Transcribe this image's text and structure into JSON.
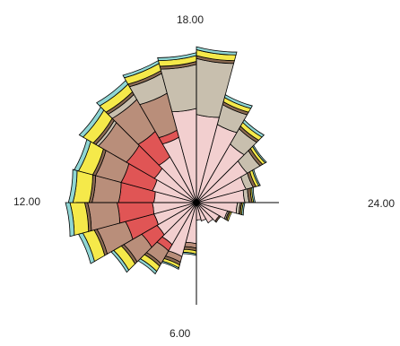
{
  "chart_data": {
    "type": "polar-stacked-bar",
    "title": "",
    "hour_axis": {
      "labels": [
        {
          "text": "18.00",
          "hour": 18
        },
        {
          "text": "12.00",
          "hour": 12
        },
        {
          "text": "24.00",
          "hour": 24
        },
        {
          "text": "6.00",
          "hour": 6
        }
      ]
    },
    "radius_max": 100,
    "series": [
      {
        "color": "#f2cfcf",
        "values": [
          {
            "hour": 6.5,
            "value": 28
          },
          {
            "hour": 7.5,
            "value": 38
          },
          {
            "hour": 8.5,
            "value": 33
          },
          {
            "hour": 9.5,
            "value": 31
          },
          {
            "hour": 10.5,
            "value": 30
          },
          {
            "hour": 11.5,
            "value": 30
          },
          {
            "hour": 12.5,
            "value": 29
          },
          {
            "hour": 13.5,
            "value": 31
          },
          {
            "hour": 14.5,
            "value": 33
          },
          {
            "hour": 15.5,
            "value": 36
          },
          {
            "hour": 16.5,
            "value": 46
          },
          {
            "hour": 17.5,
            "value": 64
          },
          {
            "hour": 18.5,
            "value": 60
          },
          {
            "hour": 19.5,
            "value": 55
          },
          {
            "hour": 20.5,
            "value": 46
          },
          {
            "hour": 21.5,
            "value": 40
          },
          {
            "hour": 22.5,
            "value": 35
          },
          {
            "hour": 23.5,
            "value": 33
          },
          {
            "hour": 0.5,
            "value": 28
          },
          {
            "hour": 1.5,
            "value": 22
          },
          {
            "hour": 2.5,
            "value": 18
          },
          {
            "hour": 3.5,
            "value": 16
          },
          {
            "hour": 4.5,
            "value": 13
          },
          {
            "hour": 5.5,
            "value": 12
          }
        ]
      },
      {
        "color": "#e05555",
        "values": [
          {
            "hour": 6.5,
            "value": 0
          },
          {
            "hour": 7.5,
            "value": 0
          },
          {
            "hour": 8.5,
            "value": 5
          },
          {
            "hour": 9.5,
            "value": 12
          },
          {
            "hour": 10.5,
            "value": 20
          },
          {
            "hour": 11.5,
            "value": 24
          },
          {
            "hour": 12.5,
            "value": 24
          },
          {
            "hour": 13.5,
            "value": 22
          },
          {
            "hour": 14.5,
            "value": 22
          },
          {
            "hour": 15.5,
            "value": 20
          },
          {
            "hour": 16.5,
            "value": 5
          },
          {
            "hour": 17.5,
            "value": 0
          },
          {
            "hour": 18.5,
            "value": 0
          },
          {
            "hour": 19.5,
            "value": 0
          },
          {
            "hour": 20.5,
            "value": 0
          },
          {
            "hour": 21.5,
            "value": 0
          },
          {
            "hour": 22.5,
            "value": 0
          },
          {
            "hour": 23.5,
            "value": 0
          },
          {
            "hour": 0.5,
            "value": 0
          },
          {
            "hour": 1.5,
            "value": 0
          },
          {
            "hour": 2.5,
            "value": 0
          },
          {
            "hour": 3.5,
            "value": 0
          },
          {
            "hour": 4.5,
            "value": 0
          },
          {
            "hour": 5.5,
            "value": 0
          }
        ]
      },
      {
        "color": "#b98e7a",
        "values": [
          {
            "hour": 6.5,
            "value": 3
          },
          {
            "hour": 7.5,
            "value": 4
          },
          {
            "hour": 8.5,
            "value": 10
          },
          {
            "hour": 9.5,
            "value": 14
          },
          {
            "hour": 10.5,
            "value": 20
          },
          {
            "hour": 11.5,
            "value": 20
          },
          {
            "hour": 12.5,
            "value": 18
          },
          {
            "hour": 13.5,
            "value": 18
          },
          {
            "hour": 14.5,
            "value": 22
          },
          {
            "hour": 15.5,
            "value": 25
          },
          {
            "hour": 16.5,
            "value": 26
          },
          {
            "hour": 17.5,
            "value": 0
          },
          {
            "hour": 18.5,
            "value": 0
          },
          {
            "hour": 19.5,
            "value": 0
          },
          {
            "hour": 20.5,
            "value": 0
          },
          {
            "hour": 21.5,
            "value": 0
          },
          {
            "hour": 22.5,
            "value": 0
          },
          {
            "hour": 23.5,
            "value": 0
          },
          {
            "hour": 0.5,
            "value": 0
          },
          {
            "hour": 1.5,
            "value": 0
          },
          {
            "hour": 2.5,
            "value": 0
          },
          {
            "hour": 3.5,
            "value": 0
          },
          {
            "hour": 4.5,
            "value": 0
          },
          {
            "hour": 5.5,
            "value": 0
          }
        ]
      },
      {
        "color": "#c8bfae",
        "values": [
          {
            "hour": 6.5,
            "value": 0
          },
          {
            "hour": 7.5,
            "value": 0
          },
          {
            "hour": 8.5,
            "value": 0
          },
          {
            "hour": 9.5,
            "value": 0
          },
          {
            "hour": 10.5,
            "value": 0
          },
          {
            "hour": 11.5,
            "value": 0
          },
          {
            "hour": 12.5,
            "value": 0
          },
          {
            "hour": 13.5,
            "value": 0
          },
          {
            "hour": 14.5,
            "value": 2
          },
          {
            "hour": 15.5,
            "value": 4
          },
          {
            "hour": 16.5,
            "value": 14
          },
          {
            "hour": 17.5,
            "value": 30
          },
          {
            "hour": 18.5,
            "value": 38
          },
          {
            "hour": 19.5,
            "value": 14
          },
          {
            "hour": 20.5,
            "value": 12
          },
          {
            "hour": 21.5,
            "value": 10
          },
          {
            "hour": 22.5,
            "value": 5
          },
          {
            "hour": 23.5,
            "value": 3
          },
          {
            "hour": 0.5,
            "value": 2
          },
          {
            "hour": 1.5,
            "value": 1
          },
          {
            "hour": 2.5,
            "value": 0
          },
          {
            "hour": 3.5,
            "value": 0
          },
          {
            "hour": 4.5,
            "value": 0
          },
          {
            "hour": 5.5,
            "value": 0
          }
        ]
      },
      {
        "color": "#8a6a52",
        "values": [
          {
            "hour": 6.5,
            "value": 2
          },
          {
            "hour": 7.5,
            "value": 2
          },
          {
            "hour": 8.5,
            "value": 2
          },
          {
            "hour": 9.5,
            "value": 2
          },
          {
            "hour": 10.5,
            "value": 2
          },
          {
            "hour": 11.5,
            "value": 2
          },
          {
            "hour": 12.5,
            "value": 2
          },
          {
            "hour": 13.5,
            "value": 2
          },
          {
            "hour": 14.5,
            "value": 2
          },
          {
            "hour": 15.5,
            "value": 2
          },
          {
            "hour": 16.5,
            "value": 2
          },
          {
            "hour": 17.5,
            "value": 2
          },
          {
            "hour": 18.5,
            "value": 2
          },
          {
            "hour": 19.5,
            "value": 2
          },
          {
            "hour": 20.5,
            "value": 2
          },
          {
            "hour": 21.5,
            "value": 2
          },
          {
            "hour": 22.5,
            "value": 2
          },
          {
            "hour": 23.5,
            "value": 2
          },
          {
            "hour": 0.5,
            "value": 1
          },
          {
            "hour": 1.5,
            "value": 1
          },
          {
            "hour": 2.5,
            "value": 1
          },
          {
            "hour": 3.5,
            "value": 0
          },
          {
            "hour": 4.5,
            "value": 0
          },
          {
            "hour": 5.5,
            "value": 0
          }
        ]
      },
      {
        "color": "#f5e94a",
        "values": [
          {
            "hour": 6.5,
            "value": 2
          },
          {
            "hour": 7.5,
            "value": 2
          },
          {
            "hour": 8.5,
            "value": 4
          },
          {
            "hour": 9.5,
            "value": 6
          },
          {
            "hour": 10.5,
            "value": 8
          },
          {
            "hour": 11.5,
            "value": 10
          },
          {
            "hour": 12.5,
            "value": 11
          },
          {
            "hour": 13.5,
            "value": 10
          },
          {
            "hour": 14.5,
            "value": 8
          },
          {
            "hour": 15.5,
            "value": 6
          },
          {
            "hour": 16.5,
            "value": 5
          },
          {
            "hour": 17.5,
            "value": 4
          },
          {
            "hour": 18.5,
            "value": 4
          },
          {
            "hour": 19.5,
            "value": 3
          },
          {
            "hour": 20.5,
            "value": 3
          },
          {
            "hour": 21.5,
            "value": 2
          },
          {
            "hour": 22.5,
            "value": 2
          },
          {
            "hour": 23.5,
            "value": 1
          },
          {
            "hour": 0.5,
            "value": 1
          },
          {
            "hour": 1.5,
            "value": 1
          },
          {
            "hour": 2.5,
            "value": 0
          },
          {
            "hour": 3.5,
            "value": 0
          },
          {
            "hour": 4.5,
            "value": 0
          },
          {
            "hour": 5.5,
            "value": 0
          }
        ]
      },
      {
        "color": "#8fd6d4",
        "values": [
          {
            "hour": 6.5,
            "value": 1
          },
          {
            "hour": 7.5,
            "value": 1
          },
          {
            "hour": 8.5,
            "value": 2
          },
          {
            "hour": 9.5,
            "value": 2
          },
          {
            "hour": 10.5,
            "value": 3
          },
          {
            "hour": 11.5,
            "value": 3
          },
          {
            "hour": 12.5,
            "value": 3
          },
          {
            "hour": 13.5,
            "value": 3
          },
          {
            "hour": 14.5,
            "value": 3
          },
          {
            "hour": 15.5,
            "value": 3
          },
          {
            "hour": 16.5,
            "value": 2
          },
          {
            "hour": 17.5,
            "value": 2
          },
          {
            "hour": 18.5,
            "value": 2
          },
          {
            "hour": 19.5,
            "value": 2
          },
          {
            "hour": 20.5,
            "value": 2
          },
          {
            "hour": 21.5,
            "value": 1
          },
          {
            "hour": 22.5,
            "value": 1
          },
          {
            "hour": 23.5,
            "value": 1
          },
          {
            "hour": 0.5,
            "value": 1
          },
          {
            "hour": 1.5,
            "value": 0
          },
          {
            "hour": 2.5,
            "value": 0
          },
          {
            "hour": 3.5,
            "value": 0
          },
          {
            "hour": 4.5,
            "value": 0
          },
          {
            "hour": 5.5,
            "value": 0
          }
        ]
      }
    ]
  }
}
